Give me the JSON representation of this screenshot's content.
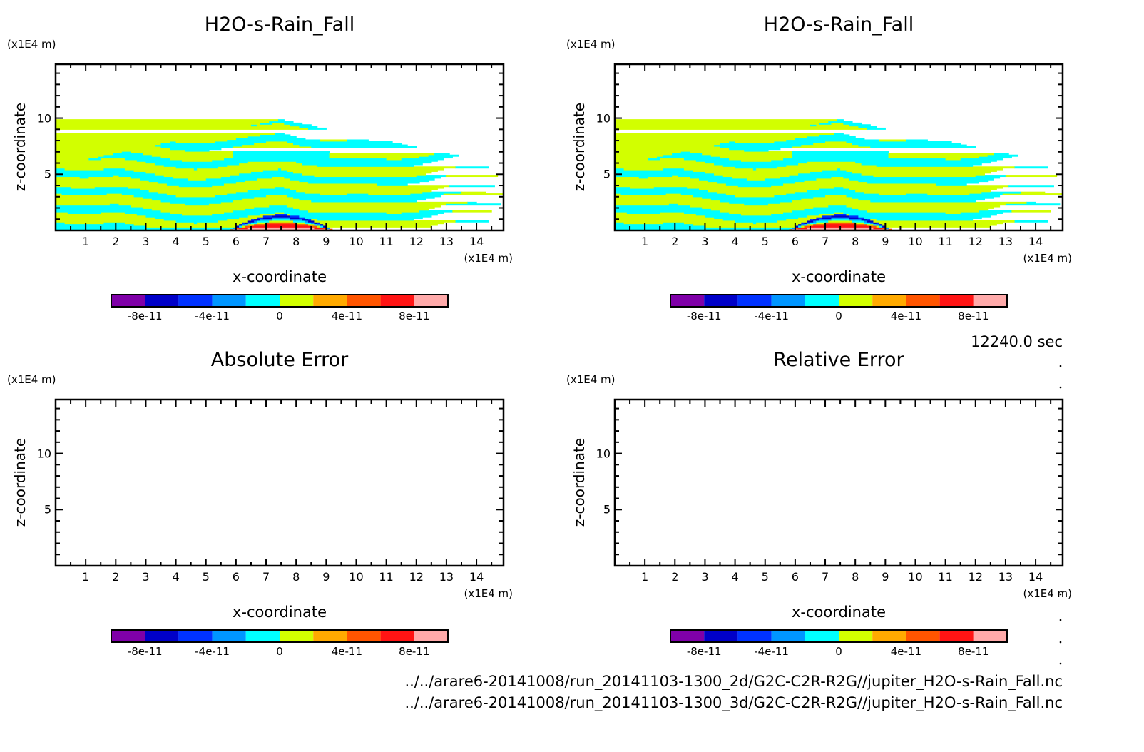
{
  "time_label": "12240.0 sec",
  "file_paths": [
    "../../arare6-20141008/run_20141103-1300_2d/G2C-C2R-R2G//jupiter_H2O-s-Rain_Fall.nc",
    "../../arare6-20141008/run_20141103-1300_3d/G2C-C2R-R2G//jupiter_H2O-s-Rain_Fall.nc"
  ],
  "colorbar": {
    "colors": [
      "#7f00a8",
      "#0000c8",
      "#0032ff",
      "#0096ff",
      "#00ffff",
      "#d2ff00",
      "#ffaa00",
      "#ff5500",
      "#ff1414",
      "#ffaaaa"
    ],
    "levels": [
      -1e-10,
      -8e-11,
      -6e-11,
      -4e-11,
      -2e-11,
      0,
      2e-11,
      4e-11,
      6e-11,
      8e-11,
      1e-10
    ],
    "tick_labels": [
      "-8e-11",
      "-4e-11",
      "0",
      "4e-11",
      "8e-11"
    ]
  },
  "chart_data": [
    {
      "type": "heatmap",
      "title": "H2O-s-Rain_Fall",
      "xlabel": "x-coordinate",
      "ylabel": "z-coordinate",
      "x_unit": "(x1E4 m)",
      "y_unit": "(x1E4 m)",
      "xlim": [
        0,
        14.9
      ],
      "ylim": [
        0,
        14.8
      ],
      "x_ticks": [
        "1",
        "2",
        "3",
        "4",
        "5",
        "6",
        "7",
        "8",
        "9",
        "10",
        "11",
        "12",
        "13",
        "14"
      ],
      "y_ticks": [
        "5",
        "10"
      ],
      "has_field": true
    },
    {
      "type": "heatmap",
      "title": "H2O-s-Rain_Fall",
      "xlabel": "x-coordinate",
      "ylabel": "z-coordinate",
      "x_unit": "(x1E4 m)",
      "y_unit": "(x1E4 m)",
      "xlim": [
        0,
        14.9
      ],
      "ylim": [
        0,
        14.8
      ],
      "x_ticks": [
        "1",
        "2",
        "3",
        "4",
        "5",
        "6",
        "7",
        "8",
        "9",
        "10",
        "11",
        "12",
        "13",
        "14"
      ],
      "y_ticks": [
        "5",
        "10"
      ],
      "has_field": true
    },
    {
      "type": "heatmap",
      "title": "Absolute Error",
      "xlabel": "x-coordinate",
      "ylabel": "z-coordinate",
      "x_unit": "(x1E4 m)",
      "y_unit": "(x1E4 m)",
      "xlim": [
        0,
        14.9
      ],
      "ylim": [
        0,
        14.8
      ],
      "x_ticks": [
        "1",
        "2",
        "3",
        "4",
        "5",
        "6",
        "7",
        "8",
        "9",
        "10",
        "11",
        "12",
        "13",
        "14"
      ],
      "y_ticks": [
        "5",
        "10"
      ],
      "has_field": false
    },
    {
      "type": "heatmap",
      "title": "Relative Error",
      "xlabel": "x-coordinate",
      "ylabel": "z-coordinate",
      "x_unit": "(x1E4 m)",
      "y_unit": "(x1E4 m)",
      "xlim": [
        0,
        14.9
      ],
      "ylim": [
        0,
        14.8
      ],
      "x_ticks": [
        "1",
        "2",
        "3",
        "4",
        "5",
        "6",
        "7",
        "8",
        "9",
        "10",
        "11",
        "12",
        "13",
        "14"
      ],
      "y_ticks": [
        "5",
        "10"
      ],
      "has_field": false
    }
  ]
}
